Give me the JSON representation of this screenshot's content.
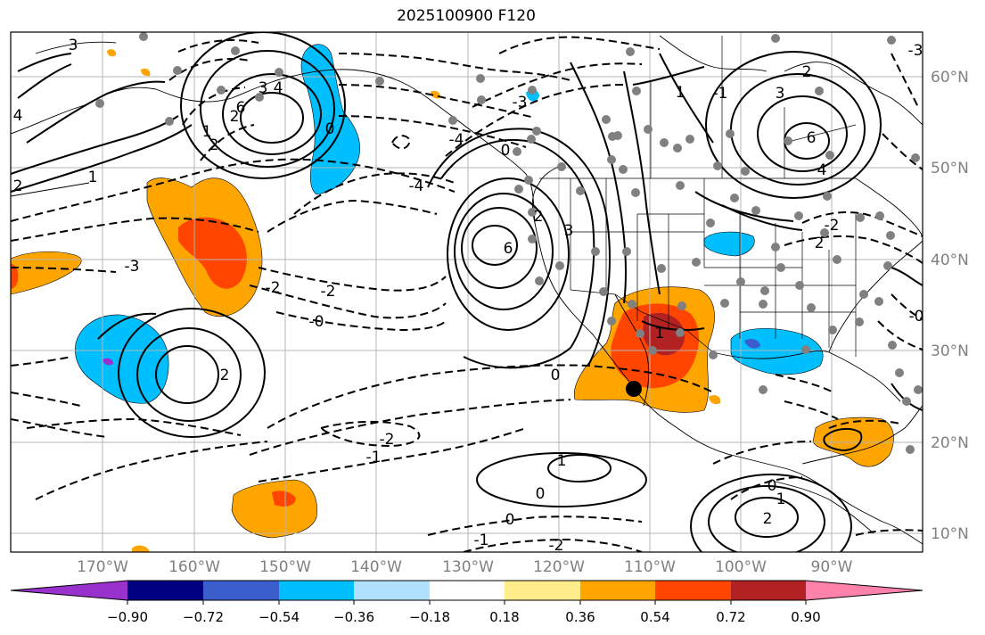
{
  "title": "2025100900 F120",
  "lat_labels": [
    "60°N",
    "50°N",
    "40°N",
    "30°N",
    "20°N",
    "10°N"
  ],
  "lon_labels": [
    "170°W",
    "160°W",
    "150°W",
    "140°W",
    "130°W",
    "120°W",
    "110°W",
    "100°W",
    "90°W"
  ],
  "colorbar": {
    "ticks": [
      "−0.90",
      "−0.72",
      "−0.54",
      "−0.36",
      "−0.18",
      "0.18",
      "0.36",
      "0.54",
      "0.72",
      "0.90"
    ],
    "colors": [
      "#9932cc",
      "#000080",
      "#3a5fcd",
      "#00bfff",
      "#b0e2ff",
      "#ffffff",
      "#ffec8b",
      "#ffa500",
      "#ff4500",
      "#b22222",
      "#ff82ab"
    ]
  },
  "contour_labels": [
    "3",
    "4",
    "2",
    "1",
    "2",
    "6",
    "3",
    "4",
    "2",
    "1",
    "0",
    "-3",
    "-2",
    "-2",
    "-0",
    "-4",
    "6",
    "3",
    "2",
    "1",
    "0",
    "-1",
    "-2",
    "-3",
    "-4",
    "3",
    "6",
    "4",
    "2",
    "0",
    "1",
    "2",
    "-1",
    "0",
    "-1",
    "-2",
    "1",
    "0",
    "1",
    "2",
    "0",
    "-2",
    "-0",
    "-3",
    "2"
  ],
  "fill_colors": {
    "orange": "#ffa500",
    "red_orange": "#ff4500",
    "dark_red": "#b22222",
    "sky": "#00bfff",
    "blue": "#3a5fcd",
    "violet": "#9932cc"
  },
  "station_color": "#808080"
}
